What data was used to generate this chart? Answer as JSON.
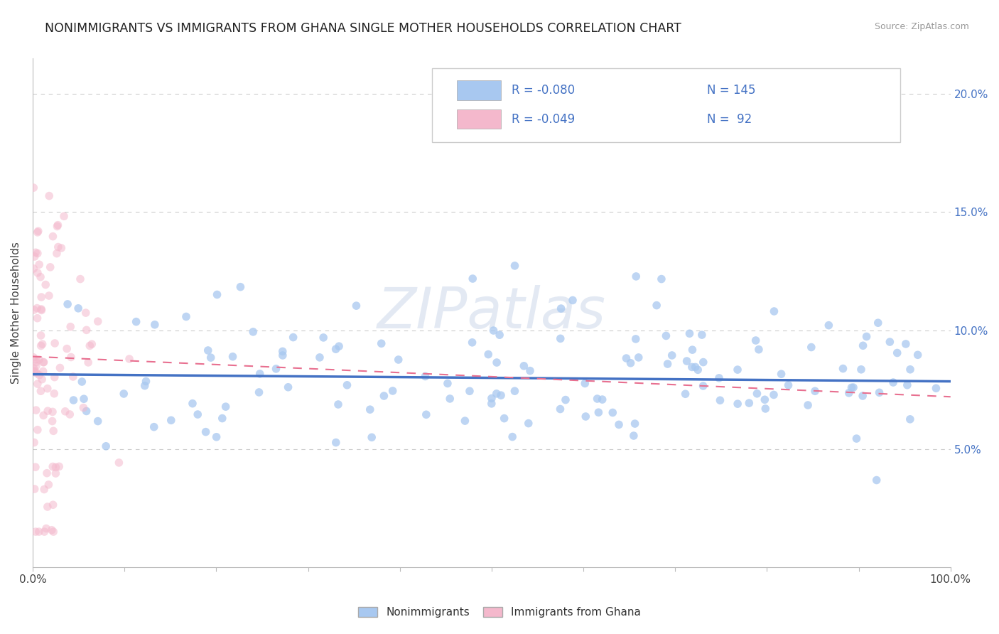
{
  "title": "NONIMMIGRANTS VS IMMIGRANTS FROM GHANA SINGLE MOTHER HOUSEHOLDS CORRELATION CHART",
  "source": "Source: ZipAtlas.com",
  "ylabel": "Single Mother Households",
  "xlim": [
    0,
    1.0
  ],
  "ylim": [
    0,
    0.215
  ],
  "xtick_positions": [
    0.0,
    0.1,
    0.2,
    0.3,
    0.4,
    0.5,
    0.6,
    0.7,
    0.8,
    0.9,
    1.0
  ],
  "xticklabels": [
    "0.0%",
    "",
    "",
    "",
    "",
    "",
    "",
    "",
    "",
    "",
    "100.0%"
  ],
  "ytick_positions": [
    0.05,
    0.1,
    0.15,
    0.2
  ],
  "yticklabels_right": [
    "5.0%",
    "10.0%",
    "15.0%",
    "20.0%"
  ],
  "watermark": "ZIPatlas",
  "legend_blue_r": "R = -0.080",
  "legend_blue_n": "N = 145",
  "legend_pink_r": "R = -0.049",
  "legend_pink_n": "N =  92",
  "blue_fill": "#a8c8f0",
  "pink_fill": "#f4b8cc",
  "blue_line_color": "#4472c4",
  "pink_line_color": "#e87090",
  "scatter_size": 70,
  "blue_scatter_alpha": 0.75,
  "pink_scatter_alpha": 0.55,
  "grid_color": "#cccccc",
  "legend_text_color": "#4472c4",
  "blue_trend_start_y": 0.0815,
  "blue_trend_end_y": 0.0785,
  "pink_trend_start_y": 0.089,
  "pink_trend_end_y": 0.072,
  "bottom_legend_items": [
    "Nonimmigrants",
    "Immigrants from Ghana"
  ]
}
